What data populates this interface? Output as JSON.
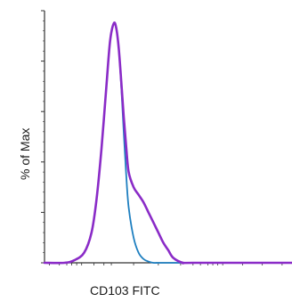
{
  "chart_data": {
    "type": "line",
    "xlabel": "CD103 FITC",
    "ylabel": "% of Max",
    "xlim": [
      0,
      100
    ],
    "ylim": [
      0,
      100
    ],
    "colors": {
      "isotype": "#1e7fc0",
      "stained": "#8a2bc7",
      "axis": "#333333"
    },
    "series": [
      {
        "color_key": "isotype",
        "x": [
          0,
          8,
          12,
          16,
          19,
          21,
          23,
          25,
          26.5,
          28,
          29,
          30,
          31,
          32,
          33,
          34,
          36,
          38,
          40,
          42,
          44,
          46,
          50,
          100
        ],
        "y": [
          0,
          0,
          1,
          4,
          12,
          25,
          45,
          70,
          88,
          95,
          93,
          85,
          70,
          52,
          35,
          22,
          10,
          4,
          1.5,
          0.5,
          0,
          0,
          0,
          0
        ]
      },
      {
        "color_key": "stained",
        "x": [
          0,
          8,
          12,
          16,
          19,
          21,
          23,
          25,
          26.5,
          28,
          29,
          30,
          31,
          32,
          33,
          34,
          36,
          38,
          40,
          42,
          44,
          46,
          48,
          50,
          52,
          56,
          60,
          100
        ],
        "y": [
          0,
          0,
          1,
          4,
          12,
          25,
          45,
          70,
          88,
          95,
          93,
          85,
          72,
          58,
          46,
          36,
          30,
          27,
          24,
          20,
          16,
          12,
          8,
          5,
          2,
          0,
          0,
          0
        ]
      }
    ]
  }
}
